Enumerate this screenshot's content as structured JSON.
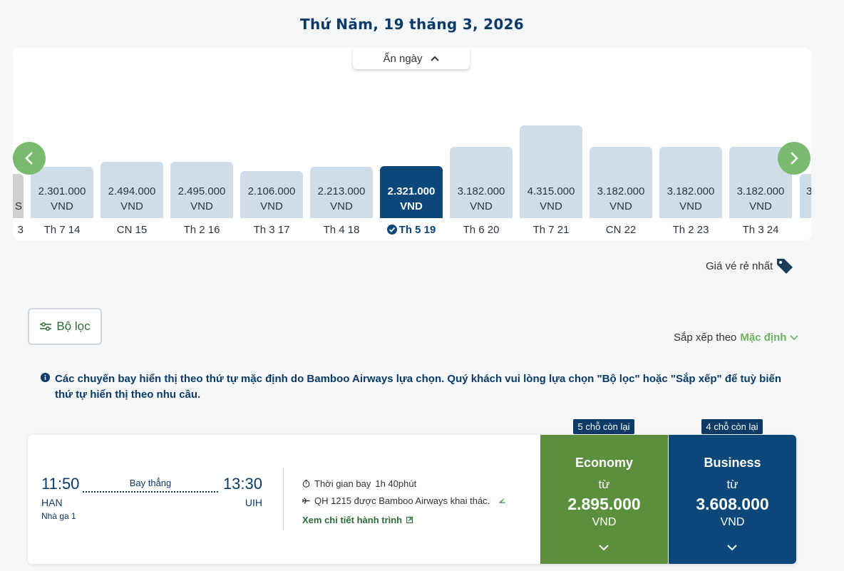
{
  "page_title": "Thứ Năm, 19 tháng 3, 2026",
  "carousel": {
    "hide_label": "Ẩn ngày",
    "partial_left": {
      "amount": "",
      "currency": "S",
      "label": "3"
    },
    "partial_right": {
      "amount": "3",
      "currency": "",
      "label": ""
    },
    "days": [
      {
        "label": "Th 7 14",
        "price": "2.301.000",
        "currency": "VND",
        "level": 0.55,
        "selected": false
      },
      {
        "label": "CN 15",
        "price": "2.494.000",
        "currency": "VND",
        "level": 0.61,
        "selected": false
      },
      {
        "label": "Th 2 16",
        "price": "2.495.000",
        "currency": "VND",
        "level": 0.61,
        "selected": false
      },
      {
        "label": "Th 3 17",
        "price": "2.106.000",
        "currency": "VND",
        "level": 0.51,
        "selected": false
      },
      {
        "label": "Th 4 18",
        "price": "2.213.000",
        "currency": "VND",
        "level": 0.55,
        "selected": false
      },
      {
        "label": "Th 5 19",
        "price": "2.321.000",
        "currency": "VND",
        "level": 0.56,
        "selected": true
      },
      {
        "label": "Th 6 20",
        "price": "3.182.000",
        "currency": "VND",
        "level": 0.77,
        "selected": false
      },
      {
        "label": "Th 7 21",
        "price": "4.315.000",
        "currency": "VND",
        "level": 1.0,
        "selected": false
      },
      {
        "label": "CN 22",
        "price": "3.182.000",
        "currency": "VND",
        "level": 0.77,
        "selected": false
      },
      {
        "label": "Th 2 23",
        "price": "3.182.000",
        "currency": "VND",
        "level": 0.77,
        "selected": false
      },
      {
        "label": "Th 3 24",
        "price": "3.182.000",
        "currency": "VND",
        "level": 0.77,
        "selected": false
      }
    ]
  },
  "cheapest_label": "Giá vé rẻ nhất",
  "filter": {
    "label": "Bộ lọc"
  },
  "sort": {
    "label": "Sắp xếp theo",
    "value": "Mặc định"
  },
  "info_text": "Các chuyến bay hiển thị theo thứ tự mặc định do Bamboo Airways lựa chọn. Quý khách vui lòng lựa chọn \"Bộ lọc\" hoặc \"Sắp xếp\" để tuỳ biến thứ tự hiển thị theo nhu cầu.",
  "flight": {
    "departure_time": "11:50",
    "arrival_time": "13:30",
    "departure_code": "HAN",
    "arrival_code": "UIH",
    "terminal": "Nhà ga 1",
    "direct_label": "Bay thẳng",
    "duration_label": "Thời gian bay",
    "duration": "1h 40phút",
    "operated_by": "QH 1215 được Bamboo Airways khai thác.",
    "details_link": "Xem chi tiết hành trình",
    "fares": [
      {
        "class": "Economy",
        "from": "từ",
        "price": "2.895.000",
        "currency": "VND",
        "seats": "5 chỗ còn lại"
      },
      {
        "class": "Business",
        "from": "từ",
        "price": "3.608.000",
        "currency": "VND",
        "seats": "4 chỗ còn lại"
      }
    ]
  },
  "colors": {
    "accent_green": "#7aba6e",
    "primary_navy": "#0b4879",
    "eco_green": "#5b8f3e"
  }
}
